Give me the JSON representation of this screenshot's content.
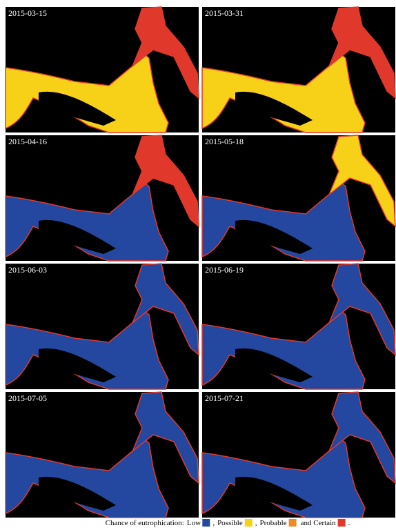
{
  "panels": [
    {
      "date": "2015-03-15",
      "lower_color": "#f7d117",
      "upper_color": "#e0392b"
    },
    {
      "date": "2015-03-31",
      "lower_color": "#f7d117",
      "upper_color": "#e0392b"
    },
    {
      "date": "2015-04-16",
      "lower_color": "#2447a0",
      "upper_color": "#e0392b"
    },
    {
      "date": "2015-05-18",
      "lower_color": "#2447a0",
      "upper_color": "#f7d117"
    },
    {
      "date": "2015-06-03",
      "lower_color": "#2447a0",
      "upper_color": "#2447a0"
    },
    {
      "date": "2015-06-19",
      "lower_color": "#2447a0",
      "upper_color": "#2447a0"
    },
    {
      "date": "2015-07-05",
      "lower_color": "#2447a0",
      "upper_color": "#2447a0"
    },
    {
      "date": "2015-07-21",
      "lower_color": "#2447a0",
      "upper_color": "#2447a0"
    }
  ],
  "caption": {
    "prefix": "Chance of eutrophication:",
    "items": [
      {
        "label": "Low",
        "color": "#2447a0",
        "suffix": ","
      },
      {
        "label": "Possible",
        "color": "#f7d117",
        "suffix": ","
      },
      {
        "label": "Probable",
        "color": "#f08a24"
      },
      {
        "label": "and Certain",
        "color": "#e0392b",
        "suffix": "."
      }
    ]
  }
}
